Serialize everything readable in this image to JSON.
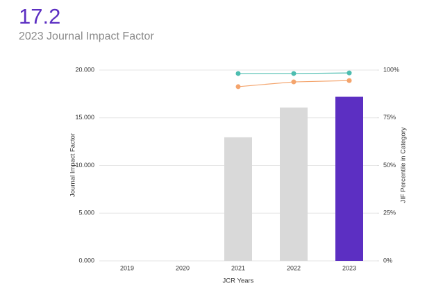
{
  "chart_data": {
    "type": "bar",
    "title": "17.2",
    "subtitle": "2023 Journal Impact Factor",
    "x_label": "JCR Years",
    "y_label": "Journal Impact Factor",
    "y2_label": "JIF Percentile in Category",
    "categories": [
      "2019",
      "2020",
      "2021",
      "2022",
      "2023"
    ],
    "ylim": [
      0,
      20
    ],
    "yticks": [
      {
        "value": 0,
        "label": "0.000"
      },
      {
        "value": 5,
        "label": "5.000"
      },
      {
        "value": 10,
        "label": "10.000"
      },
      {
        "value": 15,
        "label": "15.000"
      },
      {
        "value": 20,
        "label": "20.000"
      }
    ],
    "y2lim": [
      0,
      100
    ],
    "y2ticks": [
      {
        "value": 0,
        "label": "0%"
      },
      {
        "value": 25,
        "label": "25%"
      },
      {
        "value": 50,
        "label": "50%"
      },
      {
        "value": 75,
        "label": "75%"
      },
      {
        "value": 100,
        "label": "100%"
      }
    ],
    "grid": true,
    "series": [
      {
        "type": "bar",
        "values": [
          null,
          null,
          12.95,
          16.07,
          17.2
        ],
        "colors": [
          "#d9d9d9",
          "#d9d9d9",
          "#d9d9d9",
          "#d9d9d9",
          "#5c2fc2"
        ]
      },
      {
        "type": "line",
        "axis": "y2",
        "color": "#4dbdb0",
        "values": [
          null,
          null,
          98.2,
          98.2,
          98.5
        ]
      },
      {
        "type": "line",
        "axis": "y2",
        "color": "#f4a46c",
        "values": [
          null,
          null,
          91.3,
          93.8,
          94.5
        ]
      }
    ]
  }
}
